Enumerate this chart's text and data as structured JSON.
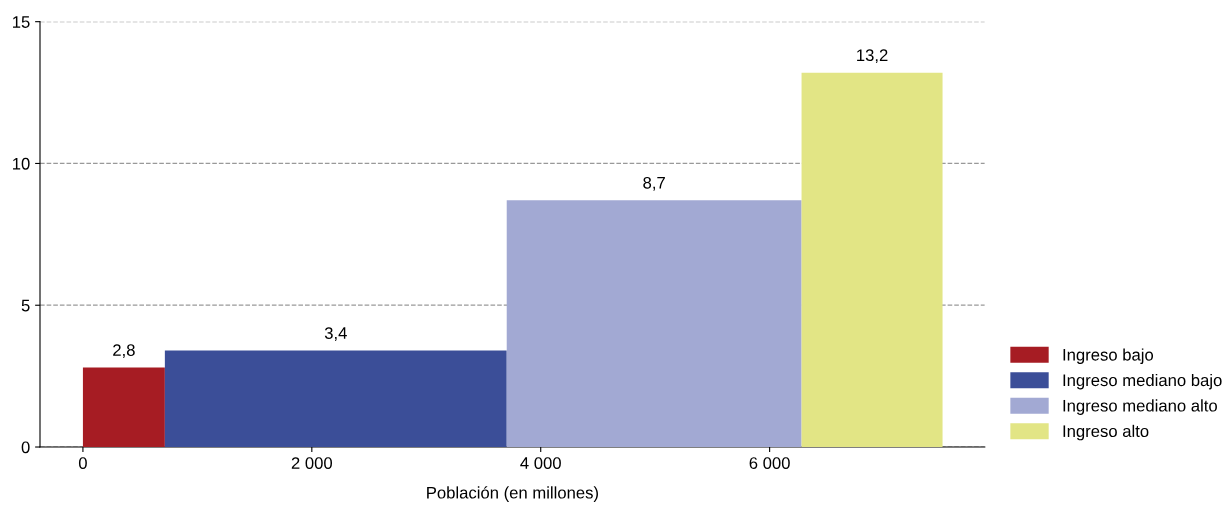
{
  "chart_data": {
    "type": "histogram",
    "bins": [
      0,
      716,
      3703,
      6279,
      7511
    ],
    "series": [
      {
        "name": "Ingreso bajo",
        "color": "#a61c23",
        "values": [
          2.8,
          null,
          null,
          null
        ],
        "value_labels": [
          "2,8",
          null,
          null,
          null
        ]
      },
      {
        "name": "Ingreso mediano bajo",
        "color": "#3b4e98",
        "values": [
          null,
          3.4,
          null,
          null
        ],
        "value_labels": [
          null,
          "3,4",
          null,
          null
        ]
      },
      {
        "name": "Ingreso mediano alto",
        "color": "#a2a9d3",
        "values": [
          null,
          null,
          8.7,
          null
        ],
        "value_labels": [
          null,
          null,
          "8,7",
          null
        ]
      },
      {
        "name": "Ingreso alto",
        "color": "#e2e585",
        "values": [
          null,
          null,
          null,
          13.2
        ],
        "value_labels": [
          null,
          null,
          null,
          "13,2"
        ]
      }
    ],
    "xlabel": "Población (en millones)",
    "xlim": [
      -375,
      7880
    ],
    "xticks": [
      0,
      {
        "value": 2000,
        "label": "2 000"
      },
      {
        "value": 4000,
        "label": "4 000"
      },
      {
        "value": 6000,
        "label": "6 000"
      }
    ],
    "ylim": [
      0,
      15
    ],
    "yticks": [
      0,
      5,
      10,
      15
    ],
    "grid": "y",
    "legend": "right"
  }
}
